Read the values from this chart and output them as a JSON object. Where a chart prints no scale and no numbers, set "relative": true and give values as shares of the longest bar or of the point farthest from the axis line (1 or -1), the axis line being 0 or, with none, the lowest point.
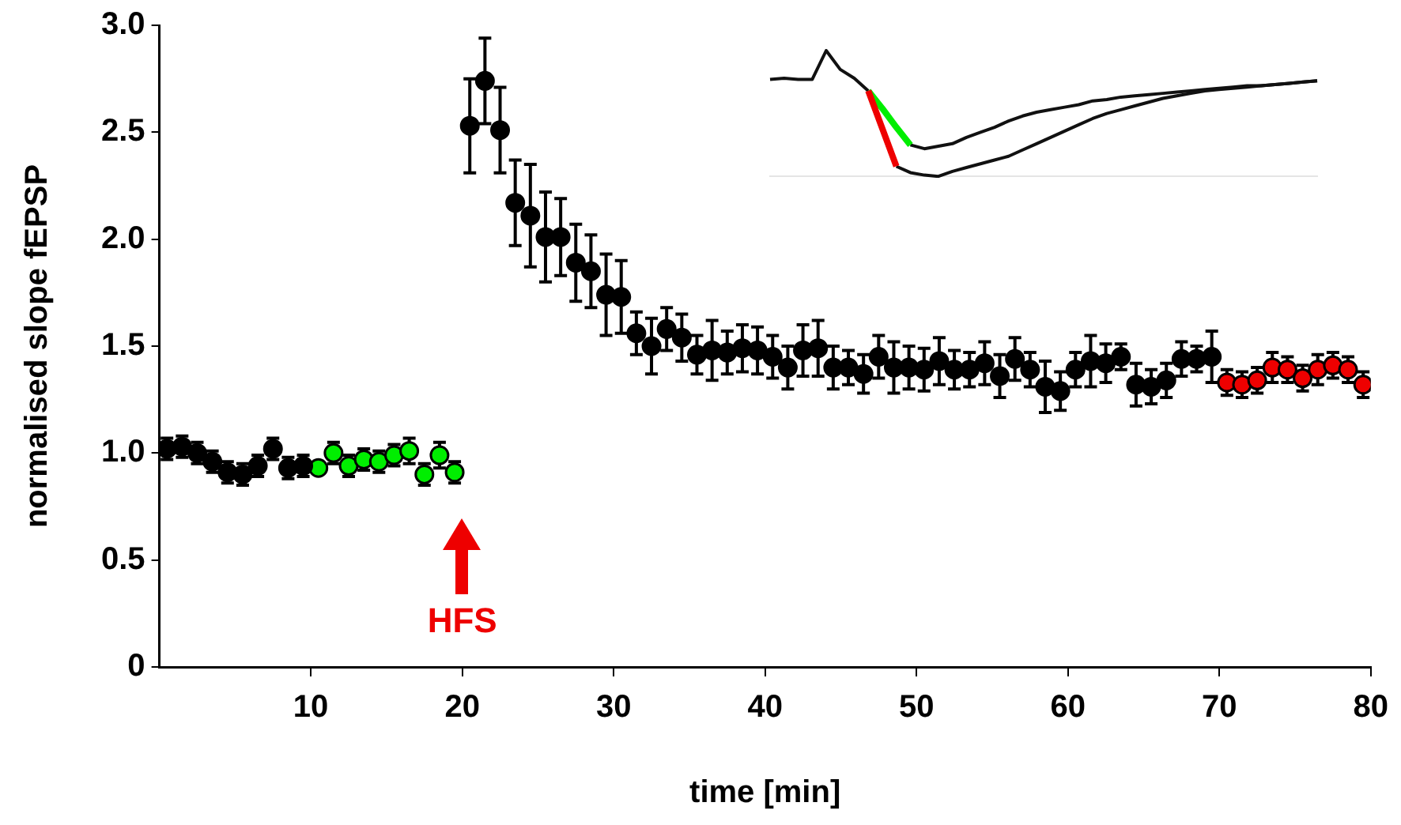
{
  "chart_data": [
    {
      "type": "scatter",
      "xlabel": "time [min]",
      "ylabel": "normalised slope fEPSP",
      "xlim": [
        0,
        80
      ],
      "xticks": [
        10,
        20,
        30,
        40,
        50,
        60,
        70,
        80
      ],
      "ylim": [
        0,
        3
      ],
      "yticks": [
        0,
        0.5,
        {
          "value": 1,
          "label": "1.0"
        },
        1.5,
        {
          "value": 2,
          "label": "2.0"
        },
        2.5,
        {
          "value": 3,
          "label": "3.0"
        }
      ],
      "grid": false,
      "legend": false,
      "marker": "circle",
      "series": [
        {
          "color": "#000000",
          "x": [
            0.5,
            1.5,
            2.5,
            3.5,
            4.5,
            5.5,
            6.5,
            7.5,
            8.5,
            9.5,
            20.5,
            21.5,
            22.5,
            23.5,
            24.5,
            25.5,
            26.5,
            27.5,
            28.5,
            29.5,
            30.5,
            31.5,
            32.5,
            33.5,
            34.5,
            35.5,
            36.5,
            37.5,
            38.5,
            39.5,
            40.5,
            41.5,
            42.5,
            43.5,
            44.5,
            45.5,
            46.5,
            47.5,
            48.5,
            49.5,
            50.5,
            51.5,
            52.5,
            53.5,
            54.5,
            55.5,
            56.5,
            57.5,
            58.5,
            59.5,
            60.5,
            61.5,
            62.5,
            63.5,
            64.5,
            65.5,
            66.5,
            67.5,
            68.5,
            69.5
          ],
          "values": [
            1.02,
            1.03,
            1.0,
            0.96,
            0.91,
            0.9,
            0.94,
            1.02,
            0.93,
            0.94,
            2.53,
            2.74,
            2.51,
            2.17,
            2.11,
            2.01,
            2.01,
            1.89,
            1.85,
            1.74,
            1.73,
            1.56,
            1.5,
            1.58,
            1.54,
            1.46,
            1.48,
            1.47,
            1.49,
            1.48,
            1.45,
            1.4,
            1.48,
            1.49,
            1.4,
            1.4,
            1.37,
            1.45,
            1.4,
            1.4,
            1.39,
            1.43,
            1.39,
            1.39,
            1.42,
            1.36,
            1.44,
            1.39,
            1.31,
            1.29,
            1.39,
            1.43,
            1.42,
            1.45,
            1.32,
            1.31,
            1.34,
            1.44,
            1.44,
            1.45
          ],
          "errors": [
            0.05,
            0.05,
            0.05,
            0.05,
            0.05,
            0.05,
            0.05,
            0.05,
            0.05,
            0.05,
            0.22,
            0.2,
            0.2,
            0.2,
            0.24,
            0.21,
            0.18,
            0.18,
            0.17,
            0.19,
            0.17,
            0.1,
            0.13,
            0.1,
            0.11,
            0.09,
            0.14,
            0.1,
            0.11,
            0.11,
            0.1,
            0.1,
            0.12,
            0.13,
            0.1,
            0.08,
            0.09,
            0.1,
            0.12,
            0.1,
            0.1,
            0.11,
            0.09,
            0.08,
            0.1,
            0.1,
            0.1,
            0.08,
            0.12,
            0.09,
            0.08,
            0.12,
            0.09,
            0.06,
            0.1,
            0.08,
            0.08,
            0.08,
            0.06,
            0.12
          ]
        },
        {
          "color": "#00ee00",
          "x": [
            10.5,
            11.5,
            12.5,
            13.5,
            14.5,
            15.5,
            16.5,
            17.5,
            18.5,
            19.5
          ],
          "values": [
            0.93,
            1.0,
            0.94,
            0.97,
            0.96,
            0.99,
            1.01,
            0.9,
            0.99,
            0.91
          ],
          "errors": [
            null,
            0.05,
            0.05,
            0.05,
            0.05,
            0.05,
            0.06,
            0.05,
            0.06,
            0.05
          ]
        },
        {
          "color": "#ee0000",
          "x": [
            70.5,
            71.5,
            72.5,
            73.5,
            74.5,
            75.5,
            76.5,
            77.5,
            78.5,
            79.5
          ],
          "values": [
            1.33,
            1.32,
            1.34,
            1.4,
            1.39,
            1.35,
            1.39,
            1.41,
            1.39,
            1.32
          ],
          "errors": [
            0.06,
            0.06,
            0.06,
            0.07,
            0.06,
            0.06,
            0.07,
            0.06,
            0.06,
            0.06
          ]
        }
      ],
      "annotations": [
        "HFS"
      ]
    },
    {
      "type": "line",
      "relative": true,
      "legend": false,
      "categories": [
        null,
        null,
        null,
        null,
        null,
        null,
        null,
        null,
        null,
        null,
        null,
        null,
        null,
        null,
        null,
        null,
        null,
        null,
        null,
        null,
        null,
        null,
        null,
        null,
        null,
        null,
        null,
        null,
        null,
        null,
        null,
        null,
        null,
        null,
        null,
        null,
        null,
        null,
        null,
        null
      ],
      "series": [
        {
          "color": "#111111",
          "values": [
            0.77,
            0.78,
            0.77,
            0.77,
            1,
            0.85,
            0.78,
            0.68,
            null,
            null,
            0.25,
            0.22,
            0.24,
            0.26,
            0.31,
            0.35,
            0.39,
            0.44,
            0.48,
            0.51,
            0.53,
            0.55,
            0.57,
            0.6,
            0.61,
            0.63,
            0.64,
            0.65,
            0.66,
            0.67,
            0.68,
            0.69,
            0.7,
            0.71,
            0.72,
            0.72,
            0.73,
            0.74,
            0.75,
            0.76
          ]
        },
        {
          "color": "#111111",
          "values": [
            null,
            null,
            null,
            null,
            null,
            null,
            null,
            null,
            null,
            0.08,
            0.03,
            0.01,
            0,
            0.04,
            0.07,
            0.1,
            0.13,
            0.16,
            0.21,
            0.26,
            0.31,
            0.36,
            0.41,
            0.46,
            0.5,
            0.53,
            0.56,
            0.59,
            0.62,
            0.64,
            0.66,
            0.68,
            0.69,
            0.7,
            0.71,
            0.72,
            0.73,
            0.74,
            0.75,
            0.76
          ]
        },
        {
          "color": "#00ee00",
          "values": [
            null,
            null,
            null,
            null,
            null,
            null,
            null,
            0.68,
            0.54,
            0.39,
            0.25,
            null,
            null,
            null,
            null,
            null,
            null,
            null,
            null,
            null,
            null,
            null,
            null,
            null,
            null,
            null,
            null,
            null,
            null,
            null,
            null,
            null,
            null,
            null,
            null,
            null,
            null,
            null,
            null,
            null
          ]
        },
        {
          "color": "#ee0000",
          "values": [
            null,
            null,
            null,
            null,
            null,
            null,
            null,
            0.68,
            0.38,
            0.08,
            null,
            null,
            null,
            null,
            null,
            null,
            null,
            null,
            null,
            null,
            null,
            null,
            null,
            null,
            null,
            null,
            null,
            null,
            null,
            null,
            null,
            null,
            null,
            null,
            null,
            null,
            null,
            null,
            null,
            null
          ]
        }
      ]
    }
  ]
}
